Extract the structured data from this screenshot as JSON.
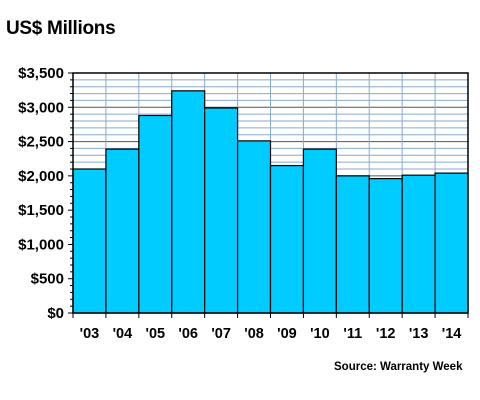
{
  "chart_data": {
    "type": "bar",
    "title": "US$ Millions",
    "source": "Source: Warranty Week",
    "categories": [
      "'03",
      "'04",
      "'05",
      "'06",
      "'07",
      "'08",
      "'09",
      "'10",
      "'11",
      "'12",
      "'13",
      "'14"
    ],
    "values": [
      2100,
      2390,
      2880,
      3240,
      2990,
      2510,
      2150,
      2390,
      2000,
      1960,
      2010,
      2040
    ],
    "y_tick_labels": [
      "$0",
      "$500",
      "$1,000",
      "$1,500",
      "$2,000",
      "$2,500",
      "$3,000",
      "$3,500"
    ],
    "ylim": [
      0,
      3500
    ],
    "y_major_step": 500,
    "y_minor_step": 100,
    "grid": true,
    "colors": {
      "bar": "#00ccff",
      "bar_edge": "#000000",
      "grid_minor": "#88aacc",
      "grid_major": "#555555"
    }
  }
}
